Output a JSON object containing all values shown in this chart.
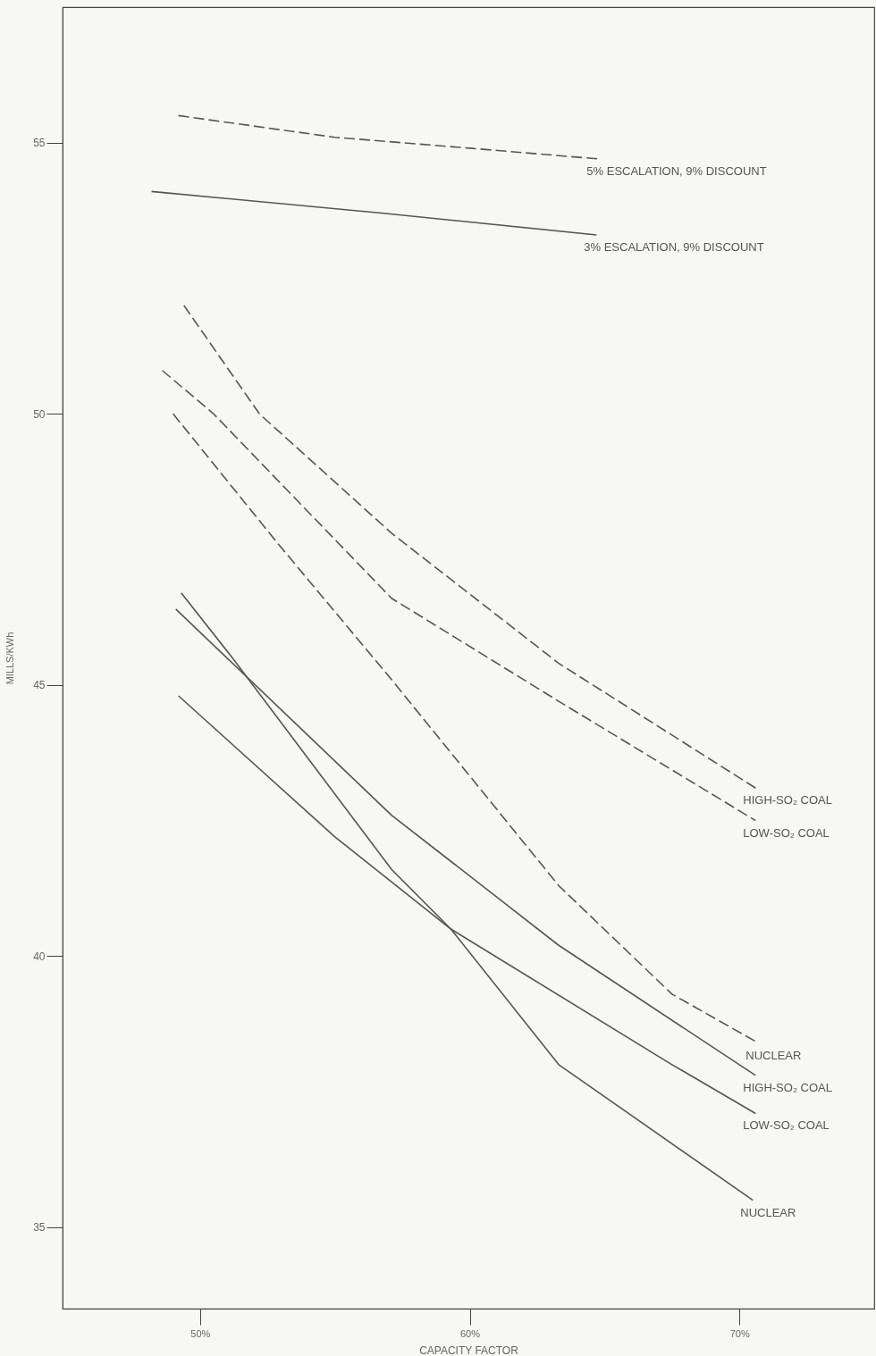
{
  "chart_data": {
    "type": "line",
    "xlabel": "CAPACITY FACTOR",
    "ylabel": "MILLS/KWh",
    "xlim": [
      44.9,
      75
    ],
    "xticks": [
      {
        "value": 50,
        "label": "50%"
      },
      {
        "value": 60,
        "label": "60%"
      },
      {
        "value": 70,
        "label": "70%"
      }
    ],
    "ylim": [
      33.5,
      57.5
    ],
    "yticks": [
      35,
      40,
      45,
      50,
      55
    ],
    "grid": false,
    "legend": false,
    "marker": "none",
    "series": [
      {
        "name": "5% ESCALATION, 9% DISCOUNT",
        "color": "#555555",
        "line_style": "dashed",
        "x": [
          49.2,
          55,
          60,
          64.8
        ],
        "values": [
          55.5,
          55.1,
          54.9,
          54.7
        ]
      },
      {
        "name": "3% ESCALATION, 9% DISCOUNT",
        "color": "#555555",
        "line_style": "solid",
        "x": [
          48.2,
          56.8,
          64.7
        ],
        "values": [
          54.1,
          53.7,
          53.3
        ]
      },
      {
        "name": "HIGH-SO₂ COAL",
        "color": "#555555",
        "line_style": "dashed",
        "x": [
          49.4,
          52.2,
          57.1,
          63.3,
          70.6
        ],
        "values": [
          52.0,
          50.0,
          47.8,
          45.4,
          43.1
        ]
      },
      {
        "name": "LOW-SO₂ COAL",
        "color": "#555555",
        "line_style": "dashed",
        "x": [
          48.6,
          50.5,
          57.1,
          63.3,
          70.6
        ],
        "values": [
          50.8,
          50.0,
          46.6,
          44.7,
          42.5
        ]
      },
      {
        "name": "NUCLEAR",
        "color": "#555555",
        "line_style": "dashed",
        "x": [
          49.0,
          52.9,
          57.1,
          63.3,
          67.5,
          70.7
        ],
        "values": [
          50.0,
          47.6,
          45.1,
          41.3,
          39.3,
          38.4
        ]
      },
      {
        "name": "HIGH-SO₂ COAL",
        "color": "#555555",
        "line_style": "solid",
        "x": [
          49.1,
          57.1,
          63.3,
          70.6
        ],
        "values": [
          46.4,
          42.6,
          40.2,
          37.8
        ]
      },
      {
        "name": "LOW-SO₂ COAL",
        "color": "#555555",
        "line_style": "solid",
        "x": [
          49.2,
          55.0,
          59.3,
          67.5,
          70.6
        ],
        "values": [
          44.8,
          42.2,
          40.5,
          38.0,
          37.1
        ]
      },
      {
        "name": "NUCLEAR",
        "color": "#555555",
        "line_style": "solid",
        "x": [
          49.3,
          51.2,
          57.1,
          59.3,
          63.3,
          70.5
        ],
        "values": [
          46.7,
          45.5,
          41.6,
          40.5,
          38.0,
          35.5
        ]
      }
    ]
  }
}
